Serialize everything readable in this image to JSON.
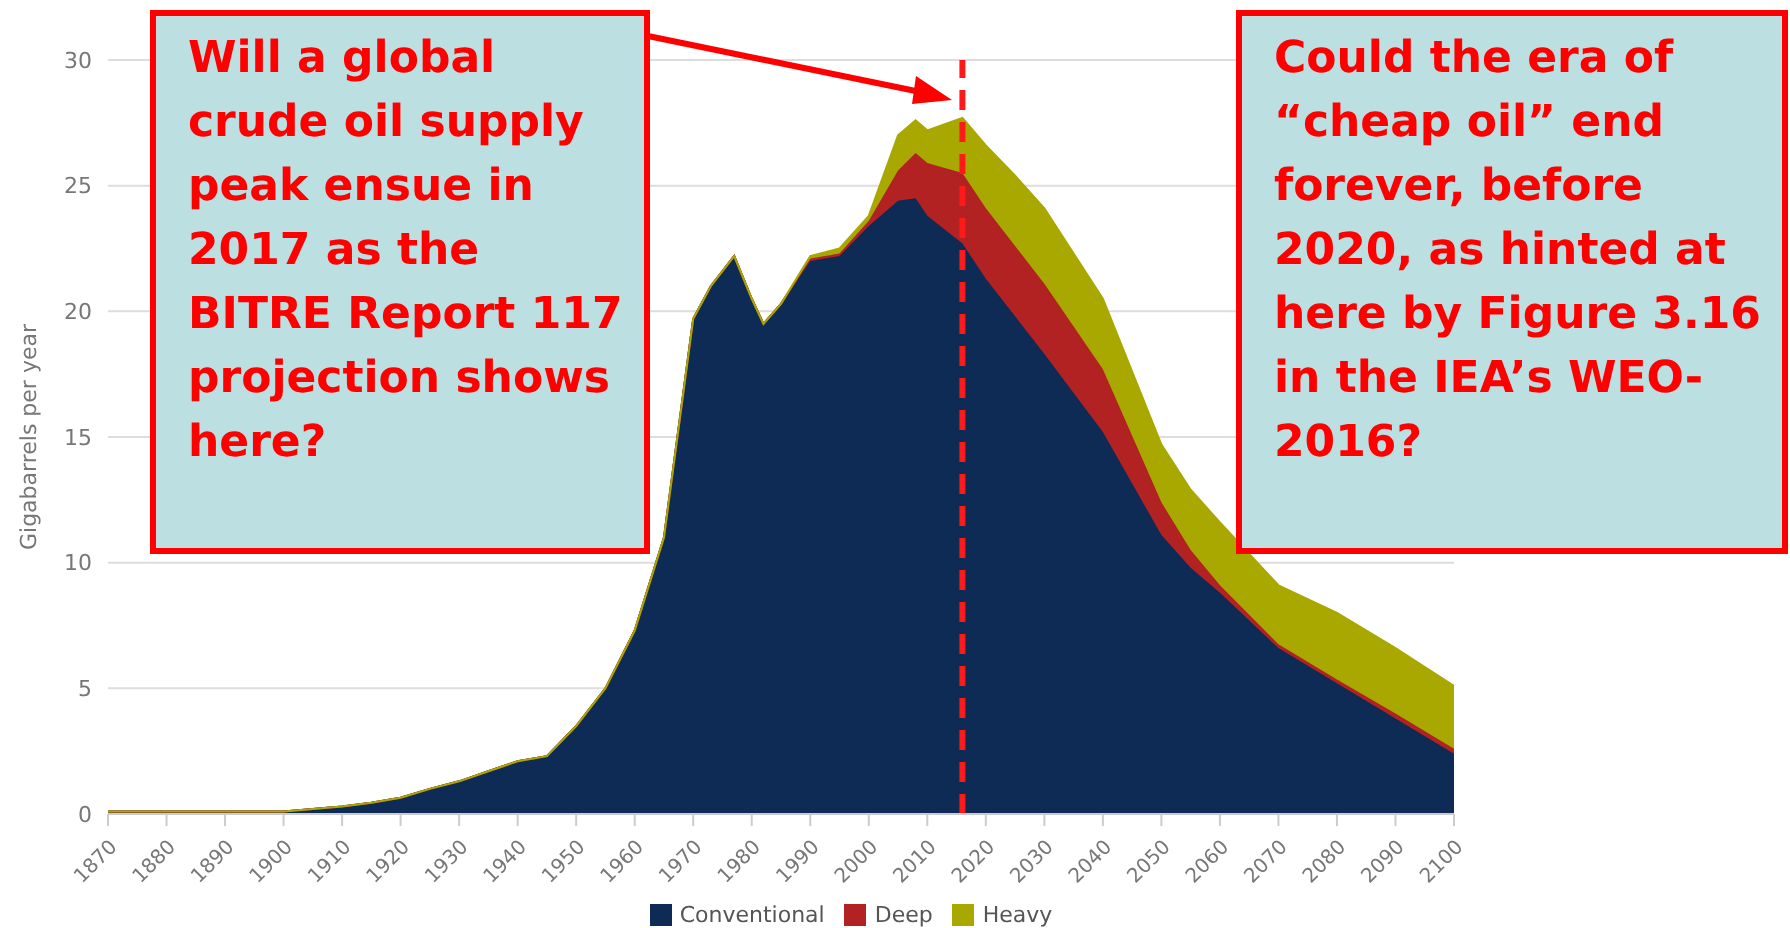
{
  "chart_data": {
    "type": "area",
    "stacked": true,
    "ylabel": "Gigabarrels per year",
    "x": [
      1870,
      1880,
      1890,
      1900,
      1905,
      1910,
      1915,
      1920,
      1925,
      1930,
      1935,
      1940,
      1945,
      1950,
      1955,
      1960,
      1965,
      1970,
      1973,
      1977,
      1980,
      1982,
      1985,
      1990,
      1995,
      2000,
      2005,
      2008,
      2010,
      2016,
      2020,
      2025,
      2030,
      2040,
      2050,
      2055,
      2060,
      2070,
      2080,
      2090,
      2100
    ],
    "series": [
      {
        "name": "Conventional",
        "color": "#0d2b55",
        "values": [
          0.1,
          0.1,
          0.1,
          0.1,
          0.2,
          0.3,
          0.45,
          0.65,
          1.0,
          1.3,
          1.7,
          2.1,
          2.3,
          3.5,
          5,
          7.3,
          11,
          19.7,
          21,
          22.2,
          20.5,
          19.5,
          20.3,
          22,
          22.2,
          23.4,
          24.4,
          24.5,
          23.8,
          22.7,
          21.3,
          19.8,
          18.3,
          15.2,
          11.1,
          9.8,
          8.8,
          6.6,
          5.2,
          3.8,
          2.4
        ]
      },
      {
        "name": "Deep",
        "color": "#b22222",
        "values": [
          0,
          0,
          0,
          0,
          0,
          0,
          0,
          0,
          0,
          0,
          0,
          0,
          0,
          0,
          0,
          0,
          0,
          0,
          0,
          0,
          0,
          0,
          0,
          0.1,
          0.1,
          0.2,
          1.2,
          1.8,
          2.1,
          2.8,
          2.8,
          2.8,
          2.8,
          2.5,
          1.3,
          0.7,
          0.3,
          0.15,
          0.15,
          0.2,
          0.2
        ]
      },
      {
        "name": "Heavy",
        "color": "#a8a800",
        "values": [
          0,
          0,
          0,
          0,
          0,
          0,
          0,
          0,
          0,
          0,
          0,
          0,
          0,
          0,
          0,
          0,
          0,
          0,
          0,
          0,
          0,
          0,
          0,
          0.1,
          0.2,
          0.2,
          1.4,
          1.3,
          1.3,
          2.2,
          2.5,
          2.8,
          3.0,
          2.8,
          2.3,
          2.4,
          2.5,
          2.35,
          2.65,
          2.6,
          2.5
        ]
      }
    ],
    "xlim": [
      1870,
      2100
    ],
    "xticks": [
      1870,
      1880,
      1890,
      1900,
      1910,
      1920,
      1930,
      1940,
      1950,
      1960,
      1970,
      1980,
      1990,
      2000,
      2010,
      2020,
      2030,
      2040,
      2050,
      2060,
      2070,
      2080,
      2090,
      2100
    ],
    "ylim": [
      0,
      30
    ],
    "yticks": [
      0,
      5,
      10,
      15,
      20,
      25,
      30
    ],
    "grid": "y",
    "legend": "bottom",
    "ref_lines": [
      {
        "axis": "x",
        "value": 2016,
        "color": "#ff1a1a",
        "line_style": "dashed"
      }
    ],
    "annotations": [
      "Will a global crude oil supply peak ensue in 2017 as the BITRE Report 117 projection shows here?",
      "Could the era of “cheap oil” end forever, before 2020, as hinted at here by Figure 3.16 in the IEA’s WEO-2016?"
    ]
  }
}
